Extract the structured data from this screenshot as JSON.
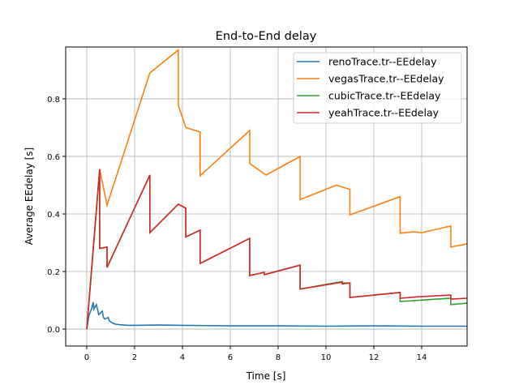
{
  "chart_data": {
    "type": "line",
    "title": "End-to-End delay",
    "xlabel": "Time [s]",
    "ylabel": "Average EEdelay [s]",
    "xlim": [
      -0.88,
      15.9
    ],
    "ylim": [
      -0.059,
      0.98
    ],
    "xticks": [
      0,
      2,
      4,
      6,
      8,
      10,
      12,
      14
    ],
    "yticks": [
      0.0,
      0.2,
      0.4,
      0.6,
      0.8
    ],
    "grid": true,
    "legend_position": "top-right",
    "series": [
      {
        "name": "renoTrace.tr--EEdelay",
        "color": "#1f77b4",
        "x": [
          0,
          0.1,
          0.2,
          0.27,
          0.3,
          0.4,
          0.45,
          0.5,
          0.65,
          0.7,
          0.75,
          0.9,
          0.95,
          1.0,
          1.1,
          1.2,
          1.4,
          1.7,
          2,
          3,
          4,
          6,
          8,
          10,
          12,
          14,
          15.9
        ],
        "y": [
          0,
          0.05,
          0.07,
          0.093,
          0.07,
          0.085,
          0.07,
          0.05,
          0.062,
          0.04,
          0.035,
          0.04,
          0.028,
          0.025,
          0.02,
          0.017,
          0.015,
          0.013,
          0.013,
          0.014,
          0.013,
          0.011,
          0.011,
          0.01,
          0.011,
          0.01,
          0.01
        ]
      },
      {
        "name": "vegasTrace.tr--EEdelay",
        "color": "#ff7f0e",
        "x": [
          0,
          0.54,
          0.85,
          2.64,
          3.83,
          3.83,
          4.14,
          4.74,
          4.74,
          6.81,
          6.81,
          7.5,
          8.92,
          8.92,
          10.44,
          11.0,
          11.0,
          13.1,
          13.1,
          13.65,
          14.0,
          15.22,
          15.22,
          15.9
        ],
        "y": [
          0,
          0.555,
          0.43,
          0.89,
          0.97,
          0.777,
          0.7,
          0.685,
          0.533,
          0.69,
          0.575,
          0.535,
          0.6,
          0.45,
          0.5,
          0.485,
          0.397,
          0.46,
          0.333,
          0.338,
          0.335,
          0.358,
          0.285,
          0.296
        ]
      },
      {
        "name": "cubicTrace.tr--EEdelay",
        "color": "#2ca02c",
        "x": [
          0,
          0.54,
          0.54,
          0.85,
          0.85,
          2.64,
          2.64,
          3.83,
          4.14,
          4.14,
          4.74,
          4.74,
          6.81,
          6.81,
          7.42,
          7.42,
          8.92,
          8.92,
          10.68,
          10.68,
          11.0,
          11.0,
          13.1,
          13.1,
          15.22,
          15.22,
          15.9
        ],
        "y": [
          0,
          0.555,
          0.28,
          0.285,
          0.214,
          0.535,
          0.335,
          0.434,
          0.42,
          0.32,
          0.344,
          0.228,
          0.315,
          0.186,
          0.197,
          0.189,
          0.222,
          0.139,
          0.165,
          0.16,
          0.16,
          0.11,
          0.127,
          0.096,
          0.107,
          0.085,
          0.09
        ]
      },
      {
        "name": "yeahTrace.tr--EEdelay",
        "color": "#d62728",
        "x": [
          0,
          0.54,
          0.54,
          0.85,
          0.85,
          2.64,
          2.64,
          3.83,
          4.14,
          4.14,
          4.74,
          4.74,
          6.81,
          6.81,
          7.42,
          7.42,
          8.92,
          8.92,
          10.68,
          10.68,
          11.0,
          11.0,
          13.1,
          13.1,
          14.0,
          15.22,
          15.22,
          15.9
        ],
        "y": [
          0,
          0.555,
          0.28,
          0.285,
          0.214,
          0.535,
          0.335,
          0.434,
          0.42,
          0.32,
          0.344,
          0.228,
          0.315,
          0.186,
          0.197,
          0.189,
          0.222,
          0.139,
          0.163,
          0.157,
          0.16,
          0.11,
          0.127,
          0.107,
          0.113,
          0.118,
          0.104,
          0.107
        ]
      }
    ]
  }
}
